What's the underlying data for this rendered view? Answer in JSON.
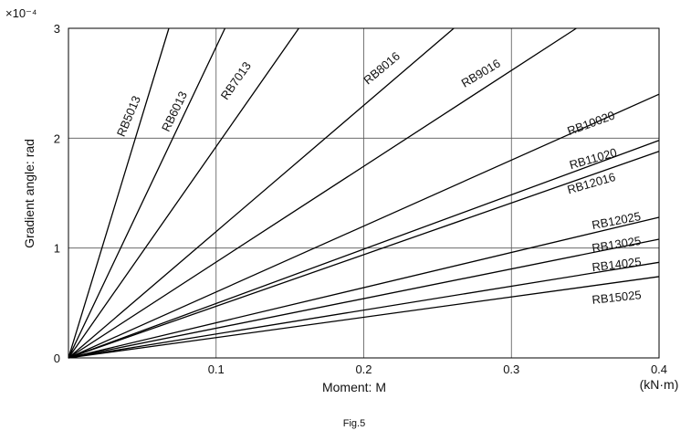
{
  "chart_data": {
    "type": "line",
    "xlabel": "Moment: M",
    "x_unit": "(kN·m)",
    "ylabel": "Gradient angle: rad",
    "y_multiplier": "×10⁻⁴",
    "xlim": [
      0,
      0.4
    ],
    "ylim": [
      0,
      3
    ],
    "x_ticks": [
      "0.1",
      "0.2",
      "0.3",
      "0.4"
    ],
    "y_ticks": [
      "0",
      "1",
      "2",
      "3"
    ],
    "grid": true,
    "caption": "Fig.5",
    "series": [
      {
        "name": "RB5013",
        "x": [
          0,
          0.068
        ],
        "y": [
          0,
          3.0
        ]
      },
      {
        "name": "RB6013",
        "x": [
          0,
          0.106
        ],
        "y": [
          0,
          3.0
        ]
      },
      {
        "name": "RB7013",
        "x": [
          0,
          0.156
        ],
        "y": [
          0,
          3.0
        ]
      },
      {
        "name": "RB8016",
        "x": [
          0,
          0.261
        ],
        "y": [
          0,
          3.0
        ]
      },
      {
        "name": "RB9016",
        "x": [
          0,
          0.344
        ],
        "y": [
          0,
          3.0
        ]
      },
      {
        "name": "RB10020",
        "x": [
          0,
          0.4
        ],
        "y": [
          0,
          2.4
        ]
      },
      {
        "name": "RB11020",
        "x": [
          0,
          0.4
        ],
        "y": [
          0,
          1.98
        ]
      },
      {
        "name": "RB12016",
        "x": [
          0,
          0.4
        ],
        "y": [
          0,
          1.88
        ]
      },
      {
        "name": "RB12025",
        "x": [
          0,
          0.4
        ],
        "y": [
          0,
          1.28
        ]
      },
      {
        "name": "RB13025",
        "x": [
          0,
          0.4
        ],
        "y": [
          0,
          1.08
        ]
      },
      {
        "name": "RB14025",
        "x": [
          0,
          0.4
        ],
        "y": [
          0,
          0.87
        ]
      },
      {
        "name": "RB15025",
        "x": [
          0,
          0.4
        ],
        "y": [
          0,
          0.74
        ]
      }
    ]
  }
}
